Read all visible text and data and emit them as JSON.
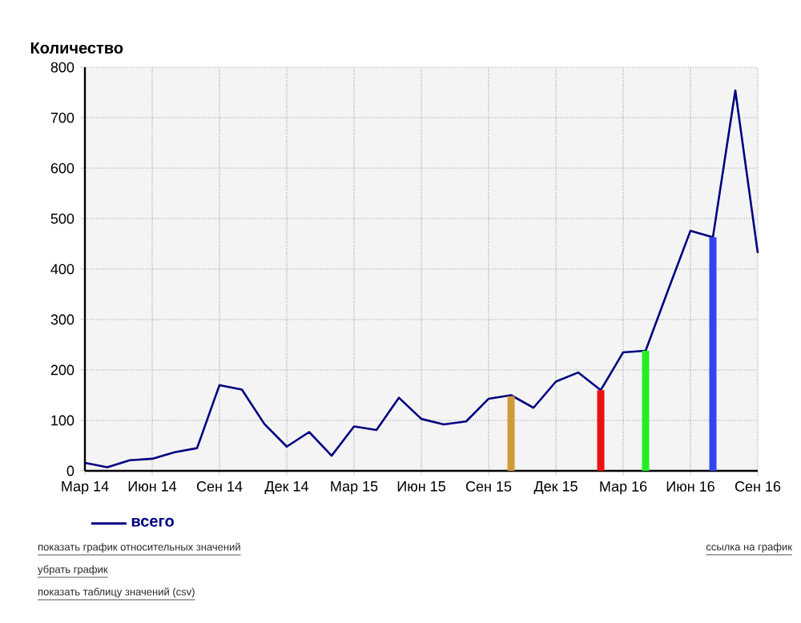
{
  "chart_data": {
    "type": "line",
    "ylabel": "Количество",
    "xlim": [
      "2014-03",
      "2016-09"
    ],
    "ylim": [
      0,
      800
    ],
    "yticks": [
      0,
      100,
      200,
      300,
      400,
      500,
      600,
      700,
      800
    ],
    "xticks": [
      {
        "value": "2014-03",
        "label": "Мар 14"
      },
      {
        "value": "2014-06",
        "label": "Июн 14"
      },
      {
        "value": "2014-09",
        "label": "Сен 14"
      },
      {
        "value": "2014-12",
        "label": "Дек 14"
      },
      {
        "value": "2015-03",
        "label": "Мар 15"
      },
      {
        "value": "2015-06",
        "label": "Июн 15"
      },
      {
        "value": "2015-09",
        "label": "Сен 15"
      },
      {
        "value": "2015-12",
        "label": "Дек 15"
      },
      {
        "value": "2016-03",
        "label": "Мар 16"
      },
      {
        "value": "2016-06",
        "label": "Июн 16"
      },
      {
        "value": "2016-09",
        "label": "Сен 16"
      }
    ],
    "grid": true,
    "legend": "bottom",
    "series": [
      {
        "name": "всего",
        "color": "#000080",
        "x": [
          "2014-03",
          "2014-04",
          "2014-05",
          "2014-06",
          "2014-07",
          "2014-08",
          "2014-09",
          "2014-10",
          "2014-11",
          "2014-12",
          "2015-01",
          "2015-02",
          "2015-03",
          "2015-04",
          "2015-05",
          "2015-06",
          "2015-07",
          "2015-08",
          "2015-09",
          "2015-10",
          "2015-11",
          "2015-12",
          "2016-01",
          "2016-02",
          "2016-03",
          "2016-04",
          "2016-05",
          "2016-06",
          "2016-07",
          "2016-08",
          "2016-09"
        ],
        "values": [
          16,
          7,
          21,
          24,
          37,
          45,
          170,
          161,
          93,
          48,
          77,
          30,
          88,
          81,
          145,
          103,
          92,
          98,
          143,
          150,
          125,
          177,
          195,
          160,
          235,
          238,
          358,
          476,
          463,
          754,
          432
        ]
      },
      {
        "type": "bar",
        "x": [
          "2015-10",
          "2016-02",
          "2016-04",
          "2016-07"
        ],
        "values": [
          148,
          160,
          238,
          463
        ],
        "colors": [
          "#d09a3a",
          "#ee1111",
          "#22ee22",
          "#3344ee"
        ]
      }
    ],
    "annotations": [
      "показать график относительных значений",
      "убрать график",
      "показать таблицу значений (csv)",
      "ссылка на график"
    ]
  }
}
